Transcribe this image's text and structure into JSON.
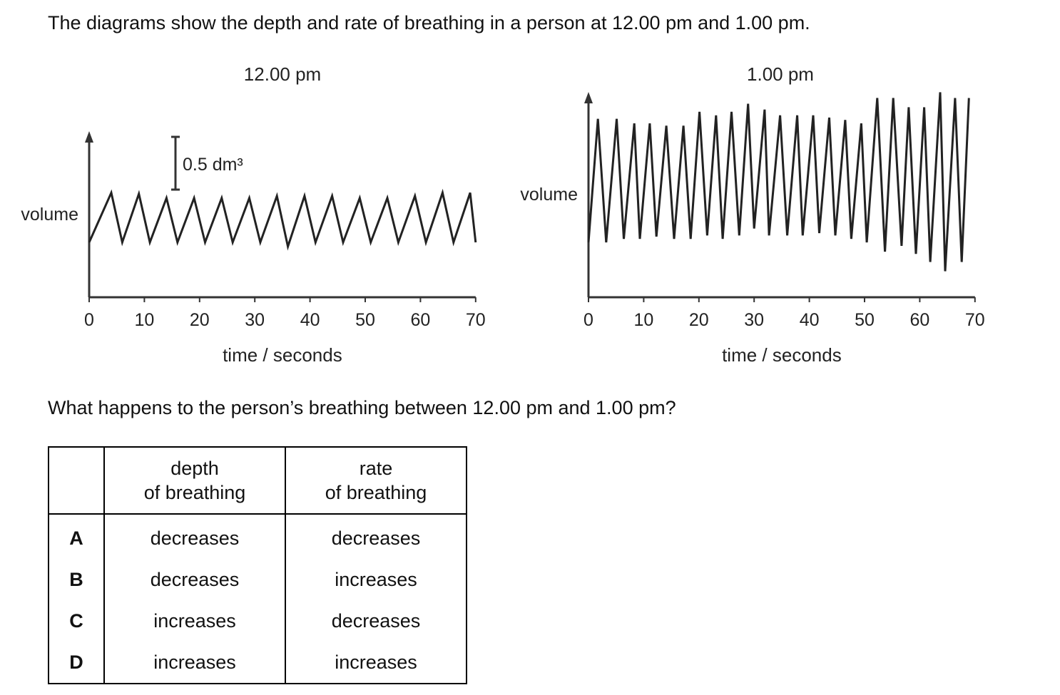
{
  "intro": "The diagrams show the depth and rate of breathing in a person at 12.00 pm and 1.00 pm.",
  "question": "What happens to the person’s breathing between 12.00 pm and 1.00 pm?",
  "chart_data": [
    {
      "type": "line",
      "title": "12.00 pm",
      "xlabel": "time / seconds",
      "ylabel": "volume",
      "xlim": [
        0,
        70
      ],
      "xticks": [
        "0",
        "10",
        "20",
        "30",
        "40",
        "50",
        "60",
        "70"
      ],
      "scale_bar": "0.5 dm³",
      "x": [
        0,
        4,
        6,
        9,
        11,
        14,
        16,
        19,
        21,
        24,
        26,
        29,
        31,
        34,
        36,
        39,
        41,
        44,
        46,
        49,
        51,
        54,
        56,
        59,
        61,
        64,
        66,
        69,
        70
      ],
      "y": [
        0,
        0.47,
        0,
        0.46,
        0,
        0.42,
        0,
        0.42,
        0,
        0.42,
        0,
        0.42,
        0,
        0.44,
        -0.04,
        0.44,
        0,
        0.44,
        0,
        0.42,
        0,
        0.42,
        0,
        0.44,
        0,
        0.47,
        0,
        0.47,
        0
      ]
    },
    {
      "type": "line",
      "title": "1.00 pm",
      "xlabel": "time / seconds",
      "ylabel": "volume",
      "xlim": [
        0,
        70
      ],
      "xticks": [
        "0",
        "10",
        "20",
        "30",
        "40",
        "50",
        "60",
        "70"
      ],
      "x": [
        0,
        1.7,
        3.2,
        5.1,
        6.4,
        8.3,
        9.3,
        11.1,
        12.3,
        14.1,
        15.5,
        17.2,
        18.5,
        20.1,
        21.5,
        23.1,
        24.3,
        25.9,
        27.3,
        28.9,
        30.0,
        31.9,
        32.7,
        34.7,
        36.0,
        37.8,
        38.8,
        40.7,
        41.8,
        43.6,
        44.7,
        46.5,
        47.6,
        49.4,
        50.4,
        52.3,
        53.7,
        55.2,
        56.7,
        58.0,
        59.3,
        60.8,
        61.9,
        63.7,
        64.6,
        66.4,
        67.6,
        68.9
      ],
      "y": [
        0,
        1.07,
        0,
        1.07,
        0.03,
        1.03,
        0.03,
        1.03,
        0.05,
        1.01,
        0.03,
        1.01,
        0.03,
        1.13,
        0.06,
        1.1,
        0.03,
        1.13,
        0.06,
        1.2,
        0.12,
        1.15,
        0.06,
        1.1,
        0.06,
        1.1,
        0.06,
        1.1,
        0.08,
        1.08,
        0.06,
        1.06,
        0.03,
        1.03,
        0,
        1.25,
        -0.08,
        1.25,
        -0.03,
        1.17,
        -0.1,
        1.17,
        -0.17,
        1.3,
        -0.25,
        1.25,
        -0.17,
        1.25
      ]
    }
  ],
  "table": {
    "headers": [
      "",
      "depth\nof breathing",
      "rate\nof breathing"
    ],
    "rows": [
      {
        "option": "A",
        "depth": "decreases",
        "rate": "decreases"
      },
      {
        "option": "B",
        "depth": "decreases",
        "rate": "increases"
      },
      {
        "option": "C",
        "depth": "increases",
        "rate": "decreases"
      },
      {
        "option": "D",
        "depth": "increases",
        "rate": "increases"
      }
    ]
  }
}
